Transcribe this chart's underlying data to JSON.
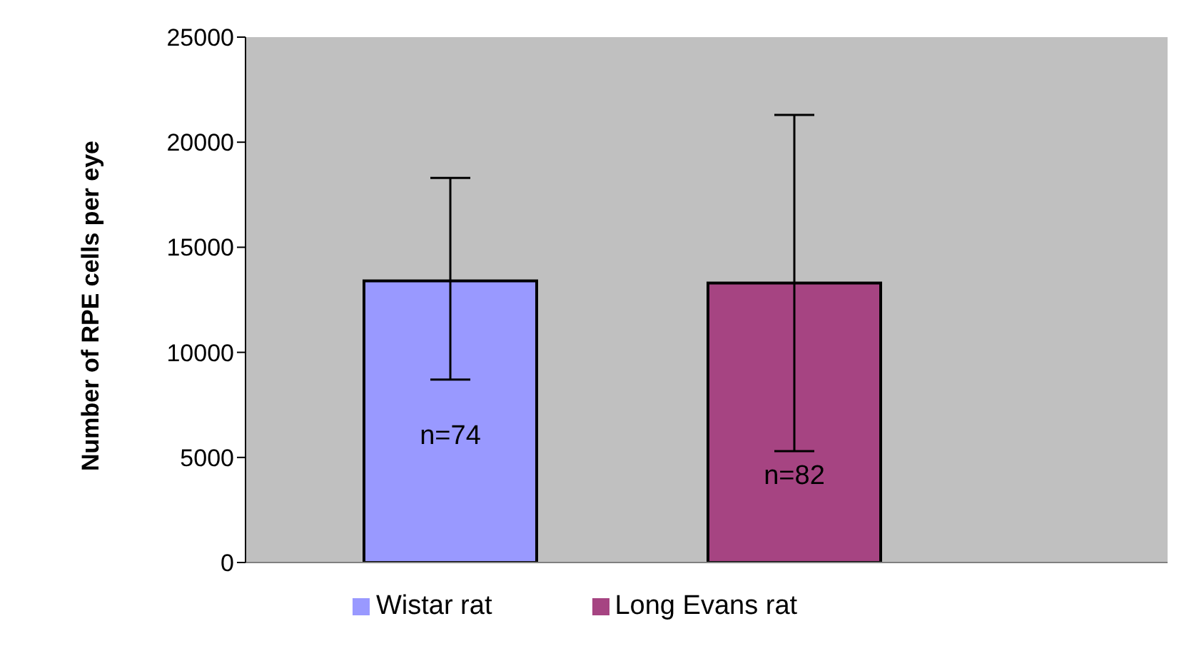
{
  "chart_data": {
    "type": "bar",
    "ylabel": "Number of RPE cells per eye",
    "categories": [
      null
    ],
    "series": [
      {
        "name": "Wistar rat",
        "color": "#9999ff",
        "values": [
          13400
        ],
        "errors": [
          [
            8700,
            18300
          ]
        ]
      },
      {
        "name": "Long Evans rat",
        "color": "#a64482",
        "values": [
          13300
        ],
        "errors": [
          [
            5300,
            21300
          ]
        ]
      }
    ],
    "annotations": [
      "n=74",
      "n=82"
    ],
    "ylim": [
      0,
      25000
    ],
    "yticks": [
      0,
      5000,
      10000,
      15000,
      20000,
      25000
    ],
    "legend": "bottom"
  }
}
